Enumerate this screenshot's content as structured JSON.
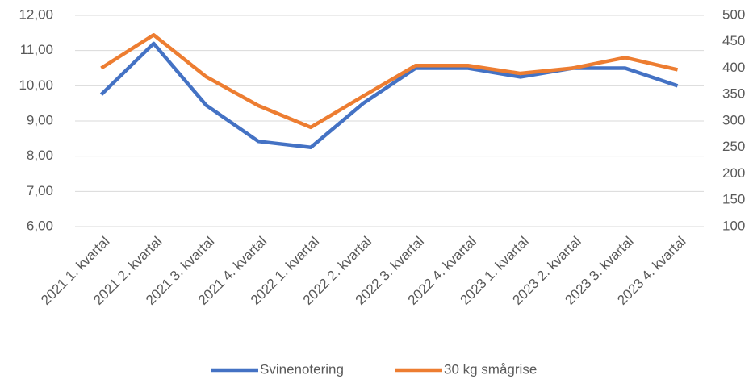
{
  "chart_data": {
    "type": "line",
    "categories": [
      "2021 1. kvartal",
      "2021 2. kvartal",
      "2021 3. kvartal",
      "2021 4. kvartal",
      "2022 1. kvartal",
      "2022 2. kvartal",
      "2022 3. kvartal",
      "2022 4. kvartal",
      "2023 1. kvartal",
      "2023 2. kvartal",
      "2023 3. kvartal",
      "2023 4. kvartal"
    ],
    "series": [
      {
        "name": "Svinenotering",
        "color": "#4472c4",
        "values": [
          9.75,
          11.2,
          9.45,
          8.42,
          8.25,
          9.5,
          10.5,
          10.5,
          10.25,
          10.5,
          10.5,
          10.0
        ]
      },
      {
        "name": "30 kg smågrise",
        "color": "#ed7d31",
        "axis": "y2",
        "values": [
          400,
          463,
          384,
          329,
          288,
          347,
          405,
          405,
          390,
          400,
          420,
          397
        ]
      }
    ],
    "ylim": [
      6,
      12
    ],
    "yticks": [
      {
        "value": 6,
        "label": "6,00"
      },
      {
        "value": 7,
        "label": "7,00"
      },
      {
        "value": 8,
        "label": "8,00"
      },
      {
        "value": 9,
        "label": "9,00"
      },
      {
        "value": 10,
        "label": "10,00"
      },
      {
        "value": 11,
        "label": "11,00"
      },
      {
        "value": 12,
        "label": "12,00"
      }
    ],
    "y2lim": [
      100,
      500
    ],
    "y2ticks": [
      100,
      150,
      200,
      250,
      300,
      350,
      400,
      450,
      500
    ],
    "grid": true,
    "legend": "bottom"
  }
}
